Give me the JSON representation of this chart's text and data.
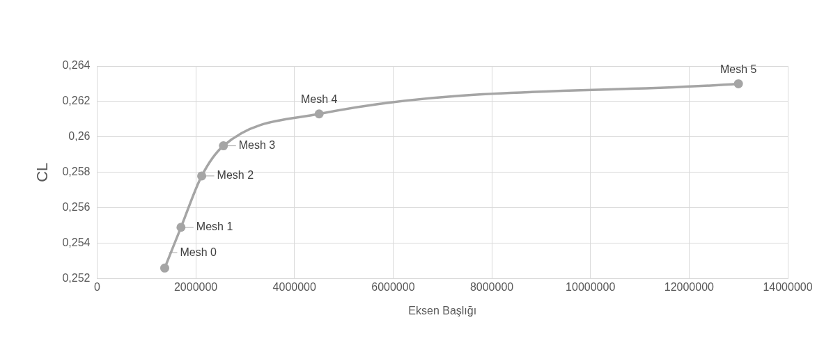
{
  "chart_data": {
    "type": "line",
    "xlabel": "Eksen Başlığı",
    "ylabel": "CL",
    "x": [
      1370000,
      1700000,
      2120000,
      2560000,
      4500000,
      13000000
    ],
    "series": [
      {
        "color": "#a5a5a5",
        "values": [
          0.2526,
          0.2549,
          0.2578,
          0.2595,
          0.2613,
          0.263
        ]
      }
    ],
    "xlim": [
      0,
      14000000
    ],
    "xticks": [
      0,
      2000000,
      4000000,
      6000000,
      8000000,
      10000000,
      12000000,
      14000000
    ],
    "ylim": [
      0.252,
      0.264
    ],
    "yticks": [
      {
        "value": 0.252,
        "label": "0,252"
      },
      {
        "value": 0.254,
        "label": "0,254"
      },
      {
        "value": 0.256,
        "label": "0,256"
      },
      {
        "value": 0.258,
        "label": "0,258"
      },
      {
        "value": 0.26,
        "label": "0,26"
      },
      {
        "value": 0.262,
        "label": "0,262"
      },
      {
        "value": 0.264,
        "label": "0,264"
      }
    ],
    "grid": true,
    "legend": false,
    "marker": "circle",
    "line_style": "solid",
    "annotations": [
      {
        "text": "Mesh 0",
        "x": 1370000,
        "y": 0.2526
      },
      {
        "text": "Mesh 1",
        "x": 1700000,
        "y": 0.2549
      },
      {
        "text": "Mesh 2",
        "x": 2120000,
        "y": 0.2578
      },
      {
        "text": "Mesh 3",
        "x": 2560000,
        "y": 0.2595
      },
      {
        "text": "Mesh 4",
        "x": 4500000,
        "y": 0.2613
      },
      {
        "text": "Mesh 5",
        "x": 13000000,
        "y": 0.263
      }
    ]
  }
}
